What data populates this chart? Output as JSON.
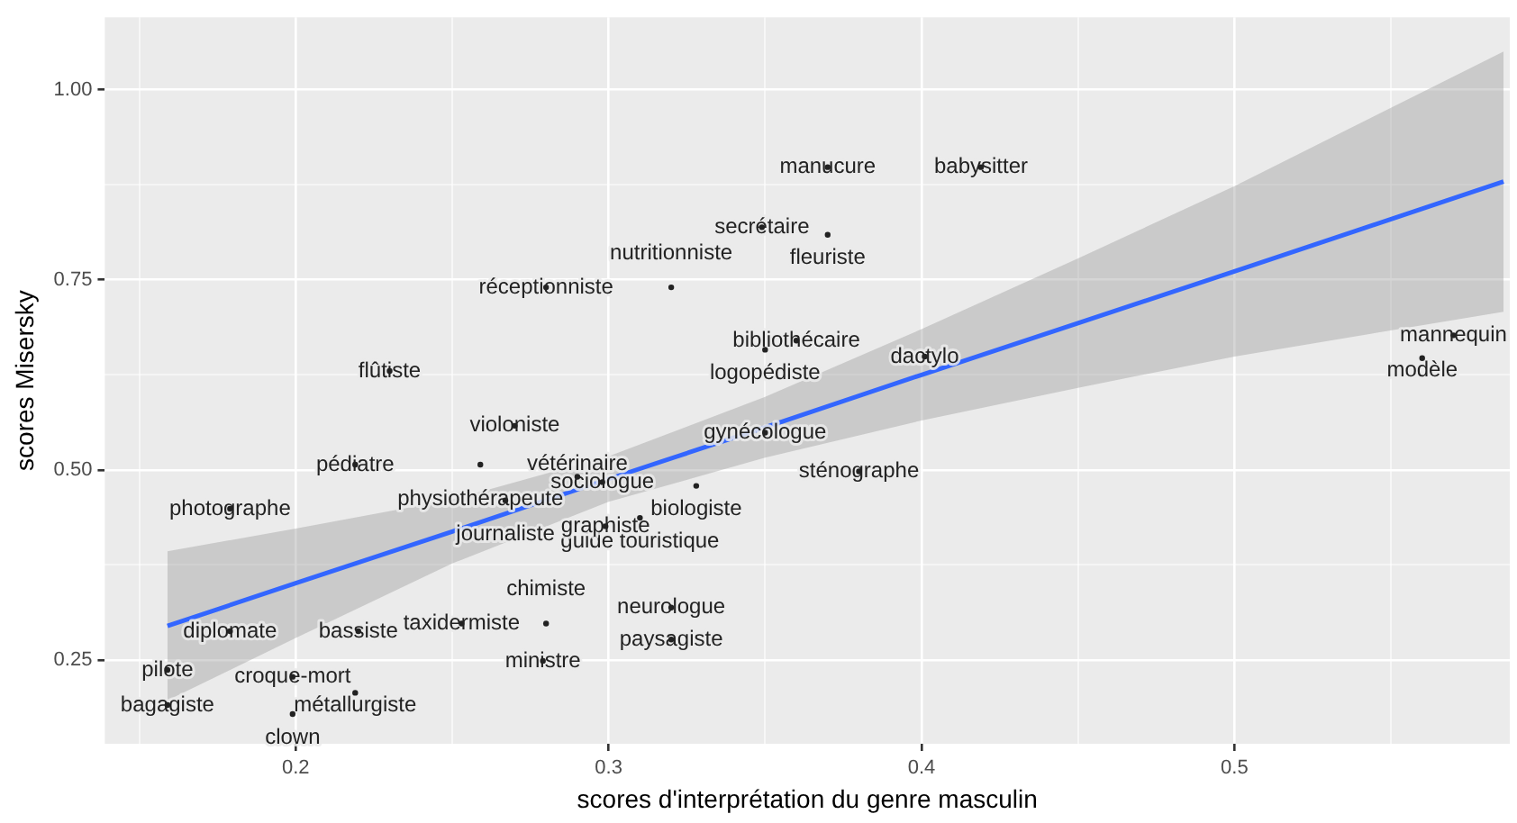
{
  "chart_data": {
    "type": "scatter",
    "xlabel": "scores d'interprétation du genre masculin",
    "ylabel": "scores Misersky",
    "xlim": [
      0.139,
      0.588
    ],
    "ylim": [
      0.14,
      1.095
    ],
    "xticks": [
      {
        "value": 0.15,
        "label": null
      },
      0.2,
      {
        "value": 0.25,
        "label": null
      },
      0.3,
      {
        "value": 0.35,
        "label": null
      },
      0.4,
      {
        "value": 0.45,
        "label": null
      },
      0.5,
      {
        "value": 0.55,
        "label": null
      }
    ],
    "yticks": [
      {
        "value": 0.25,
        "label": "0.25"
      },
      {
        "value": 0.375,
        "label": null
      },
      {
        "value": 0.5,
        "label": "0.50"
      },
      {
        "value": 0.625,
        "label": null
      },
      {
        "value": 0.75,
        "label": "0.75"
      },
      {
        "value": 0.875,
        "label": null
      },
      {
        "value": 1,
        "label": "1.00"
      }
    ],
    "grid": true,
    "legend": false,
    "series": [
      {
        "type": "scatter",
        "marker": "circle",
        "color": "#222222",
        "x": [
          0.37,
          0.419,
          0.349,
          0.37,
          0.28,
          0.32,
          0.36,
          0.35,
          0.401,
          0.57,
          0.56,
          0.23,
          0.27,
          0.35,
          0.219,
          0.259,
          0.38,
          0.29,
          0.298,
          0.328,
          0.267,
          0.179,
          0.31,
          0.299,
          0.32,
          0.179,
          0.22,
          0.253,
          0.28,
          0.32,
          0.279,
          0.159,
          0.199,
          0.219,
          0.159,
          0.199
        ],
        "values": [
          0.898,
          0.898,
          0.819,
          0.809,
          0.74,
          0.74,
          0.67,
          0.658,
          0.649,
          0.677,
          0.647,
          0.63,
          0.558,
          0.549,
          0.507,
          0.507,
          0.498,
          0.491,
          0.484,
          0.479,
          0.46,
          0.449,
          0.437,
          0.426,
          0.319,
          0.288,
          0.288,
          0.298,
          0.298,
          0.277,
          0.249,
          0.237,
          0.228,
          0.207,
          0.191,
          0.179
        ],
        "value_labels": [
          "manucure",
          "babysitter",
          "secrétaire",
          "fleuriste",
          "réceptionniste",
          "nutritionniste",
          "bibliothécaire",
          "logopédiste",
          "dactylo",
          "mannequin",
          "modèle",
          "flûtiste",
          "violoniste",
          "gynécologue",
          "pédiatre",
          "physiothérapeute",
          "sténographe",
          "vétérinaire",
          "sociologue",
          "biologiste",
          "journaliste",
          "photographe",
          "guide touristique",
          "graphiste",
          "neurologue",
          "diplomate",
          "bassiste",
          "taxidermiste",
          "chimiste",
          "paysagiste",
          "ministre",
          "pilote",
          "croque-mort",
          "métallurgiste",
          "bagagiste",
          "clown"
        ]
      },
      {
        "type": "line",
        "color": "#3366ff",
        "x": [
          0.159,
          0.2,
          0.25,
          0.3,
          0.35,
          0.4,
          0.45,
          0.5,
          0.586
        ],
        "values": [
          0.295,
          0.351,
          0.419,
          0.488,
          0.556,
          0.625,
          0.693,
          0.761,
          0.879
        ],
        "lower": [
          0.197,
          0.279,
          0.377,
          0.458,
          0.516,
          0.565,
          0.608,
          0.649,
          0.708
        ],
        "upper": [
          0.393,
          0.423,
          0.461,
          0.518,
          0.596,
          0.685,
          0.778,
          0.873,
          1.05
        ]
      }
    ]
  }
}
